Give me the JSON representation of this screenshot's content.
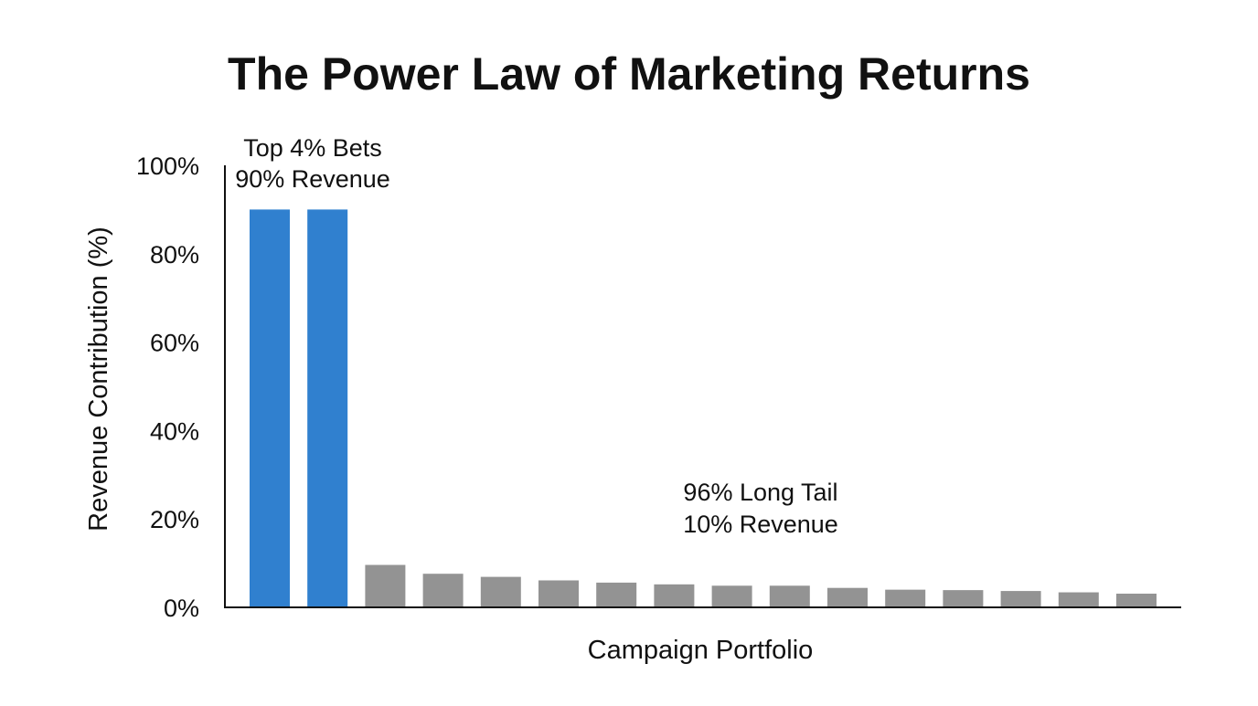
{
  "chart_data": {
    "type": "bar",
    "title": "The Power Law of Marketing Returns",
    "xlabel": "Campaign Portfolio",
    "ylabel": "Revenue Contribution (%)",
    "ylim": [
      0,
      100
    ],
    "yticks": [
      "0%",
      "20%",
      "40%",
      "60%",
      "80%",
      "100%"
    ],
    "ytick_values": [
      0,
      20,
      40,
      60,
      80,
      100
    ],
    "grid": false,
    "values": [
      90,
      90,
      9.6,
      7.6,
      6.9,
      6.1,
      5.6,
      5.2,
      4.9,
      4.9,
      4.4,
      4.0,
      3.9,
      3.7,
      3.4,
      3.1
    ],
    "highlight_count": 2,
    "colors": {
      "highlight": "#3080cf",
      "tail": "#939393"
    },
    "annotations": [
      {
        "lines": [
          "Top 4% Bets",
          "90% Revenue"
        ]
      },
      {
        "lines": [
          "96% Long Tail",
          "10% Revenue"
        ]
      }
    ]
  }
}
